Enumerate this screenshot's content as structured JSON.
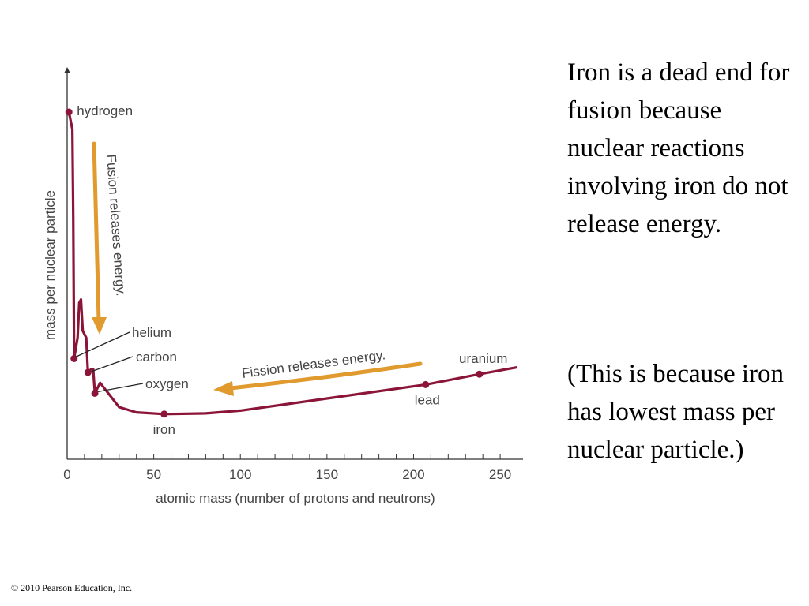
{
  "text": {
    "paragraph1": "Iron is a dead end for fusion because nuclear reactions involving iron do not release energy.",
    "paragraph2": "(This is because iron has lowest mass per nuclear particle.)",
    "copyright": "© 2010 Pearson Education, Inc."
  },
  "colors": {
    "curve": "#8b1538",
    "arrow": "#e09a2d",
    "axis": "#333333",
    "label": "#444444"
  },
  "chart_data": {
    "type": "line",
    "xlabel": "atomic mass (number of protons and neutrons)",
    "ylabel": "mass per nuclear particle",
    "xlim": [
      0,
      260
    ],
    "ylim": [
      0,
      100
    ],
    "x_ticks": [
      0,
      50,
      100,
      150,
      200,
      250
    ],
    "x_tick_labels": [
      "0",
      "50",
      "100",
      "150",
      "200",
      "250"
    ],
    "y_tick_labels_shown": false,
    "series": [
      {
        "points": [
          {
            "x": 1,
            "y": 100
          },
          {
            "x": 3,
            "y": 95
          },
          {
            "x": 3.5,
            "y": 70
          },
          {
            "x": 4,
            "y": 29
          },
          {
            "x": 6,
            "y": 35
          },
          {
            "x": 7,
            "y": 45
          },
          {
            "x": 8,
            "y": 46
          },
          {
            "x": 9,
            "y": 37
          },
          {
            "x": 10,
            "y": 36
          },
          {
            "x": 11,
            "y": 35
          },
          {
            "x": 12,
            "y": 25
          },
          {
            "x": 14,
            "y": 26
          },
          {
            "x": 15,
            "y": 26
          },
          {
            "x": 16,
            "y": 19
          },
          {
            "x": 19,
            "y": 22
          },
          {
            "x": 30,
            "y": 15
          },
          {
            "x": 40,
            "y": 13.5
          },
          {
            "x": 56,
            "y": 13
          },
          {
            "x": 80,
            "y": 13.2
          },
          {
            "x": 100,
            "y": 14
          },
          {
            "x": 150,
            "y": 17.5
          },
          {
            "x": 207,
            "y": 21.5
          },
          {
            "x": 238,
            "y": 24.5
          },
          {
            "x": 260,
            "y": 26.5
          }
        ]
      }
    ],
    "labeled_points": [
      {
        "label": "hydrogen",
        "x": 1,
        "y": 100
      },
      {
        "label": "helium",
        "x": 4,
        "y": 29
      },
      {
        "label": "carbon",
        "x": 12,
        "y": 25
      },
      {
        "label": "oxygen",
        "x": 16,
        "y": 19
      },
      {
        "label": "iron",
        "x": 56,
        "y": 13
      },
      {
        "label": "lead",
        "x": 207,
        "y": 21.5
      },
      {
        "label": "uranium",
        "x": 238,
        "y": 24.5
      }
    ],
    "annotations": [
      {
        "text": "Fusion releases energy."
      },
      {
        "text": "Fission releases energy."
      }
    ],
    "grid": false
  }
}
